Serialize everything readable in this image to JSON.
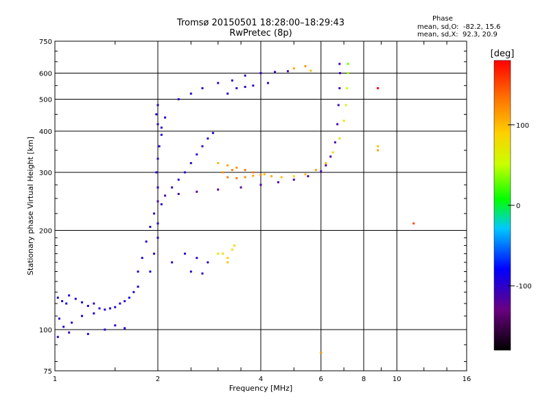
{
  "chart_data": {
    "type": "scatter",
    "title": "Tromsø 20150501 18:28:00–18:29:43",
    "subtitle": "RwPretec (8p)",
    "xlabel": "Frequency [MHz]",
    "ylabel": "Stationary phase Virtual Height [km]",
    "x_scale": "log",
    "y_scale": "log",
    "xlim": [
      1,
      16
    ],
    "ylim": [
      75,
      750
    ],
    "x_ticks": [
      "1",
      "2",
      "4",
      "6",
      "8",
      "10",
      "16"
    ],
    "x_tick_values": [
      1,
      2,
      4,
      6,
      8,
      10,
      16
    ],
    "y_ticks": [
      "75",
      "100",
      "200",
      "300",
      "400",
      "500",
      "600",
      "750"
    ],
    "y_tick_values": [
      75,
      100,
      200,
      300,
      400,
      500,
      600,
      750
    ],
    "grid": true,
    "legend": {
      "title": "Phase",
      "line1": "mean, sd,O:  -82.2, 15.6",
      "line2": "mean, sd,X:  92.3, 20.9"
    },
    "colorbar": {
      "label": "[deg]",
      "range": [
        -180,
        180
      ],
      "ticks": [
        "100",
        "0",
        "-100"
      ],
      "tick_values": [
        100,
        0,
        -100
      ]
    },
    "series": [
      {
        "name": "O",
        "points_xyp": [
          [
            1.02,
            125,
            -95
          ],
          [
            1.05,
            122,
            -90
          ],
          [
            1.08,
            120,
            -85
          ],
          [
            1.1,
            127,
            -95
          ],
          [
            1.15,
            124,
            -92
          ],
          [
            1.2,
            121,
            -88
          ],
          [
            1.25,
            118,
            -95
          ],
          [
            1.3,
            120,
            -100
          ],
          [
            1.35,
            116,
            -98
          ],
          [
            1.4,
            115,
            -92
          ],
          [
            1.45,
            116,
            -90
          ],
          [
            1.5,
            117,
            -95
          ],
          [
            1.55,
            120,
            -100
          ],
          [
            1.6,
            122,
            -95
          ],
          [
            1.65,
            125,
            -90
          ],
          [
            1.7,
            130,
            -92
          ],
          [
            1.75,
            135,
            -95
          ],
          [
            1.03,
            108,
            -100
          ],
          [
            1.06,
            102,
            -95
          ],
          [
            1.1,
            98,
            -105
          ],
          [
            1.12,
            105,
            -95
          ],
          [
            1.2,
            110,
            -90
          ],
          [
            1.3,
            112,
            -95
          ],
          [
            1.4,
            100,
            -98
          ],
          [
            1.5,
            103,
            -92
          ],
          [
            1.6,
            101,
            -95
          ],
          [
            1.02,
            95,
            -100
          ],
          [
            1.25,
            97,
            -98
          ],
          [
            1.75,
            150,
            -95
          ],
          [
            1.8,
            165,
            -100
          ],
          [
            1.85,
            185,
            -95
          ],
          [
            1.9,
            205,
            -100
          ],
          [
            1.95,
            225,
            -95
          ],
          [
            2.0,
            245,
            -110
          ],
          [
            2.1,
            255,
            -115
          ],
          [
            2.3,
            258,
            -115
          ],
          [
            2.6,
            262,
            -120
          ],
          [
            3.0,
            266,
            -120
          ],
          [
            3.5,
            270,
            -118
          ],
          [
            4.0,
            275,
            -115
          ],
          [
            4.5,
            280,
            -112
          ],
          [
            5.0,
            285,
            -110
          ],
          [
            5.5,
            292,
            -110
          ],
          [
            6.0,
            302,
            -110
          ],
          [
            6.2,
            315,
            -110
          ],
          [
            6.4,
            335,
            -110
          ],
          [
            6.6,
            370,
            -110
          ],
          [
            6.7,
            420,
            -110
          ],
          [
            6.75,
            480,
            -110
          ],
          [
            6.8,
            540,
            -110
          ],
          [
            6.82,
            600,
            -110
          ],
          [
            6.8,
            640,
            -110
          ],
          [
            1.9,
            150,
            -90
          ],
          [
            1.95,
            170,
            -95
          ],
          [
            2.0,
            190,
            -100
          ],
          [
            2.0,
            210,
            -95
          ],
          [
            2.05,
            240,
            -100
          ],
          [
            2.0,
            270,
            -95
          ],
          [
            1.98,
            300,
            -100
          ],
          [
            2.0,
            330,
            -95
          ],
          [
            2.02,
            360,
            -100
          ],
          [
            2.05,
            390,
            -95
          ],
          [
            2.0,
            420,
            -100
          ],
          [
            1.98,
            450,
            -95
          ],
          [
            2.0,
            480,
            -100
          ],
          [
            2.1,
            440,
            -95
          ],
          [
            2.05,
            410,
            -100
          ],
          [
            2.2,
            270,
            -100
          ],
          [
            2.3,
            285,
            -100
          ],
          [
            2.4,
            300,
            -102
          ],
          [
            2.5,
            320,
            -100
          ],
          [
            2.6,
            340,
            -100
          ],
          [
            2.7,
            360,
            -100
          ],
          [
            2.8,
            380,
            -98
          ],
          [
            2.9,
            395,
            -98
          ],
          [
            2.3,
            500,
            -100
          ],
          [
            2.5,
            520,
            -100
          ],
          [
            2.7,
            540,
            -100
          ],
          [
            3.0,
            560,
            -100
          ],
          [
            3.3,
            570,
            -100
          ],
          [
            3.6,
            590,
            -105
          ],
          [
            4.0,
            600,
            -105
          ],
          [
            4.4,
            605,
            -105
          ],
          [
            4.8,
            608,
            -108
          ],
          [
            3.2,
            520,
            -100
          ],
          [
            3.4,
            540,
            -100
          ],
          [
            3.6,
            545,
            -100
          ],
          [
            3.8,
            550,
            -100
          ],
          [
            4.2,
            560,
            -102
          ],
          [
            2.2,
            160,
            -100
          ],
          [
            2.4,
            170,
            -100
          ],
          [
            2.6,
            165,
            -100
          ],
          [
            2.8,
            160,
            -100
          ],
          [
            2.5,
            150,
            -100
          ],
          [
            2.7,
            148,
            -100
          ]
        ]
      },
      {
        "name": "X",
        "points_xyp": [
          [
            3.0,
            320,
            100
          ],
          [
            3.2,
            315,
            110
          ],
          [
            3.4,
            310,
            120
          ],
          [
            3.6,
            305,
            130
          ],
          [
            3.8,
            300,
            130
          ],
          [
            4.0,
            295,
            120
          ],
          [
            4.3,
            292,
            110
          ],
          [
            4.6,
            290,
            100
          ],
          [
            5.0,
            292,
            90
          ],
          [
            5.4,
            296,
            100
          ],
          [
            5.8,
            305,
            110
          ],
          [
            6.2,
            320,
            100
          ],
          [
            6.5,
            345,
            90
          ],
          [
            6.8,
            380,
            80
          ],
          [
            7.0,
            430,
            70
          ],
          [
            7.1,
            480,
            60
          ],
          [
            7.15,
            540,
            50
          ],
          [
            7.2,
            600,
            40
          ],
          [
            7.2,
            640,
            30
          ],
          [
            3.2,
            290,
            130
          ],
          [
            3.4,
            288,
            130
          ],
          [
            3.6,
            290,
            120
          ],
          [
            3.8,
            293,
            110
          ],
          [
            4.1,
            296,
            100
          ],
          [
            3.1,
            300,
            120
          ],
          [
            3.3,
            305,
            125
          ],
          [
            3.1,
            170,
            80
          ],
          [
            3.2,
            165,
            90
          ],
          [
            3.3,
            175,
            75
          ],
          [
            3.2,
            160,
            95
          ],
          [
            3.0,
            170,
            70
          ],
          [
            3.35,
            180,
            85
          ],
          [
            5.0,
            620,
            110
          ],
          [
            5.4,
            630,
            120
          ],
          [
            5.6,
            610,
            100
          ],
          [
            8.8,
            540,
            180
          ],
          [
            8.8,
            350,
            110
          ],
          [
            8.8,
            360,
            95
          ],
          [
            6.0,
            85,
            120
          ],
          [
            11.2,
            210,
            150
          ]
        ]
      }
    ]
  }
}
